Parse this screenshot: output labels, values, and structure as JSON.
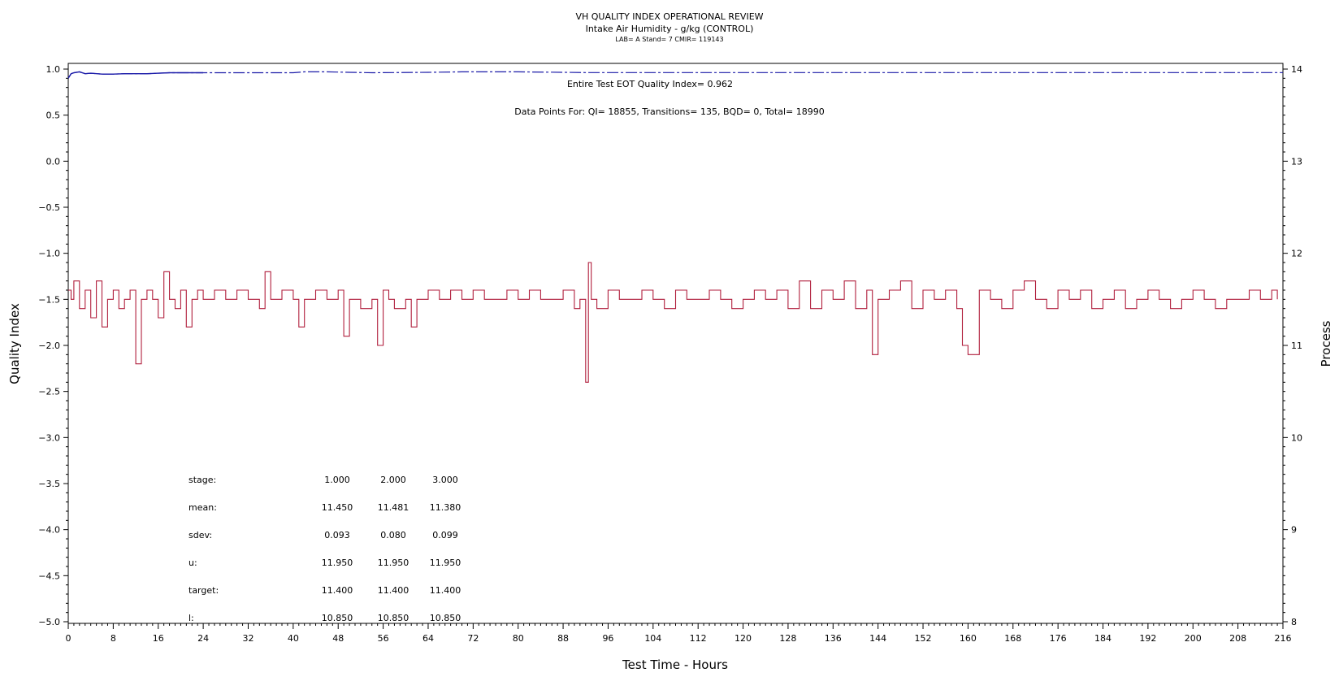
{
  "chart_data": {
    "type": "line",
    "title": "VH QUALITY INDEX OPERATIONAL REVIEW",
    "subtitle": "Intake Air Humidity - g/kg (CONTROL)",
    "subtitle2": "LAB= A Stand= 7 CMIR= 119143",
    "xlabel": "Test Time - Hours",
    "ylabel_left": "Quality Index",
    "ylabel_right": "Process",
    "xlim": [
      0,
      216
    ],
    "ylim_left": [
      -5.0,
      1.0
    ],
    "ylim_right": [
      8,
      14
    ],
    "x_ticks": [
      "0",
      "8",
      "16",
      "24",
      "32",
      "40",
      "48",
      "56",
      "64",
      "72",
      "80",
      "88",
      "96",
      "104",
      "112",
      "120",
      "128",
      "136",
      "144",
      "152",
      "160",
      "168",
      "176",
      "184",
      "192",
      "200",
      "208",
      "216"
    ],
    "y_left_ticks": [
      "1.0",
      "0.5",
      "0.0",
      "-0.5",
      "-1.0",
      "-1.5",
      "-2.0",
      "-2.5",
      "-3.0",
      "-3.5",
      "-4.0",
      "-4.5",
      "-5.0"
    ],
    "y_right_ticks": [
      "14",
      "13",
      "12",
      "11",
      "10",
      "9",
      "8"
    ],
    "annotations": {
      "eot_quality": "Entire Test EOT Quality Index=   0.962",
      "data_points": "Data Points For: QI= 18855, Transitions=    135, BQD=     0, Total= 18990"
    },
    "series": [
      {
        "color": "#1a1aa8",
        "axis": "left",
        "style": "solid then dash-dot",
        "x": [
          0,
          0.5,
          1,
          2,
          3,
          4,
          6,
          8,
          10,
          14,
          18,
          24,
          40,
          42,
          46,
          50,
          54,
          64,
          70,
          80,
          92,
          100,
          120,
          140,
          160,
          180,
          200,
          216
        ],
        "y": [
          0.9,
          0.95,
          0.96,
          0.97,
          0.95,
          0.955,
          0.945,
          0.945,
          0.95,
          0.95,
          0.96,
          0.96,
          0.96,
          0.97,
          0.97,
          0.965,
          0.96,
          0.965,
          0.97,
          0.97,
          0.962,
          0.962,
          0.962,
          0.962,
          0.962,
          0.962,
          0.962,
          0.962
        ]
      },
      {
        "color": "#b01e3c",
        "axis": "right",
        "style": "solid",
        "baseline": 11.5,
        "min": 10.6,
        "max": 11.9,
        "x": [
          0,
          0.5,
          1,
          2,
          3,
          4,
          5,
          6,
          7,
          8,
          9,
          10,
          11,
          12,
          13,
          14,
          15,
          16,
          17,
          18,
          19,
          20,
          21,
          22,
          23,
          24,
          26,
          28,
          30,
          32,
          34,
          35,
          36,
          38,
          40,
          41,
          42,
          44,
          46,
          48,
          49,
          50,
          52,
          54,
          55,
          56,
          57,
          58,
          60,
          61,
          62,
          64,
          66,
          68,
          70,
          72,
          74,
          76,
          78,
          80,
          82,
          84,
          86,
          88,
          90,
          91,
          92,
          92.5,
          93,
          94,
          96,
          98,
          100,
          102,
          104,
          106,
          108,
          110,
          112,
          114,
          116,
          118,
          120,
          122,
          124,
          126,
          128,
          130,
          132,
          134,
          136,
          138,
          140,
          142,
          143,
          144,
          146,
          148,
          150,
          152,
          154,
          156,
          158,
          159,
          160,
          162,
          164,
          166,
          168,
          170,
          172,
          174,
          176,
          178,
          180,
          182,
          184,
          186,
          188,
          190,
          192,
          194,
          196,
          198,
          200,
          202,
          204,
          206,
          208,
          210,
          212,
          214,
          215
        ],
        "y": [
          11.6,
          11.5,
          11.7,
          11.4,
          11.6,
          11.3,
          11.7,
          11.2,
          11.5,
          11.6,
          11.4,
          11.5,
          11.6,
          10.8,
          11.5,
          11.6,
          11.5,
          11.3,
          11.8,
          11.5,
          11.4,
          11.6,
          11.2,
          11.5,
          11.6,
          11.5,
          11.6,
          11.5,
          11.6,
          11.5,
          11.4,
          11.8,
          11.5,
          11.6,
          11.5,
          11.2,
          11.5,
          11.6,
          11.5,
          11.6,
          11.1,
          11.5,
          11.4,
          11.5,
          11.0,
          11.6,
          11.5,
          11.4,
          11.5,
          11.2,
          11.5,
          11.6,
          11.5,
          11.6,
          11.5,
          11.6,
          11.5,
          11.5,
          11.6,
          11.5,
          11.6,
          11.5,
          11.5,
          11.6,
          11.4,
          11.5,
          10.6,
          11.9,
          11.5,
          11.4,
          11.6,
          11.5,
          11.5,
          11.6,
          11.5,
          11.4,
          11.6,
          11.5,
          11.5,
          11.6,
          11.5,
          11.4,
          11.5,
          11.6,
          11.5,
          11.6,
          11.4,
          11.7,
          11.4,
          11.6,
          11.5,
          11.7,
          11.4,
          11.6,
          10.9,
          11.5,
          11.6,
          11.7,
          11.4,
          11.6,
          11.5,
          11.6,
          11.4,
          11.0,
          10.9,
          11.6,
          11.5,
          11.4,
          11.6,
          11.7,
          11.5,
          11.4,
          11.6,
          11.5,
          11.6,
          11.4,
          11.5,
          11.6,
          11.4,
          11.5,
          11.6,
          11.5,
          11.4,
          11.5,
          11.6,
          11.5,
          11.4,
          11.5,
          11.5,
          11.6,
          11.5,
          11.6,
          11.5
        ]
      }
    ],
    "stats_table": {
      "row_labels": [
        "stage:",
        "mean:",
        "sdev:",
        "u:",
        "target:",
        "l:"
      ],
      "columns": [
        [
          "1.000",
          "11.450",
          "0.093",
          "11.950",
          "11.400",
          "10.850"
        ],
        [
          "2.000",
          "11.481",
          "0.080",
          "11.950",
          "11.400",
          "10.850"
        ],
        [
          "3.000",
          "11.380",
          "0.099",
          "11.950",
          "11.400",
          "10.850"
        ]
      ]
    }
  }
}
